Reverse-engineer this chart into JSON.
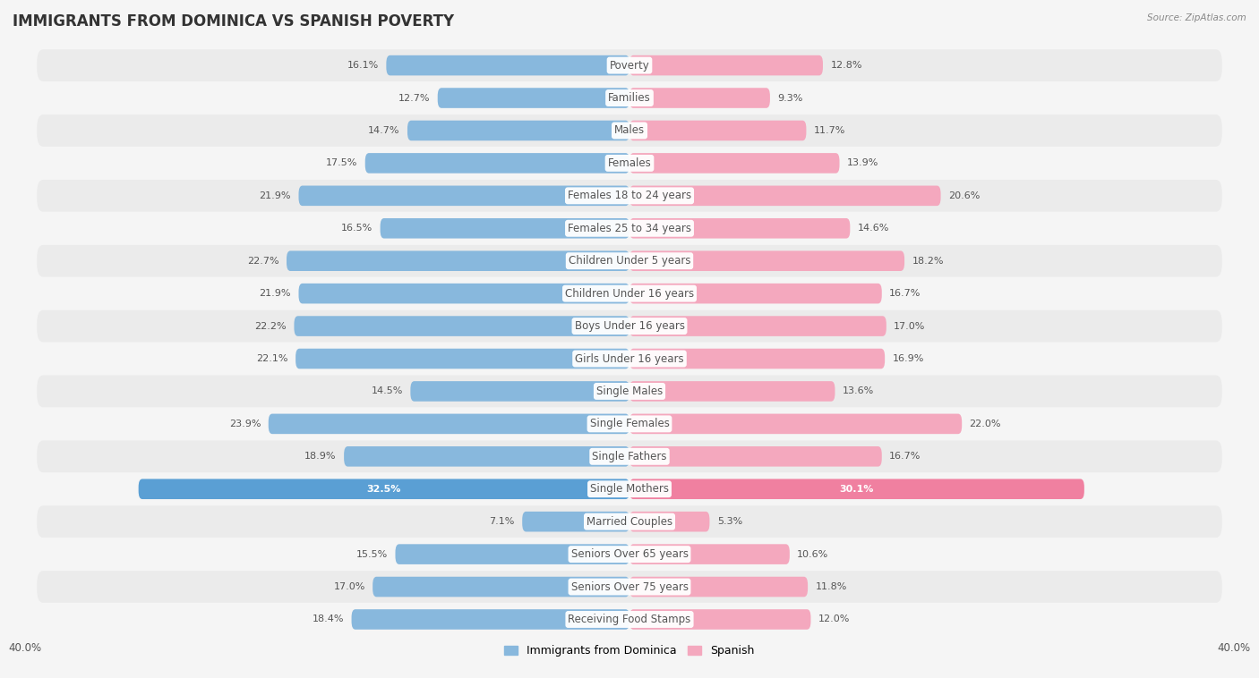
{
  "title": "IMMIGRANTS FROM DOMINICA VS SPANISH POVERTY",
  "source": "Source: ZipAtlas.com",
  "categories": [
    "Poverty",
    "Families",
    "Males",
    "Females",
    "Females 18 to 24 years",
    "Females 25 to 34 years",
    "Children Under 5 years",
    "Children Under 16 years",
    "Boys Under 16 years",
    "Girls Under 16 years",
    "Single Males",
    "Single Females",
    "Single Fathers",
    "Single Mothers",
    "Married Couples",
    "Seniors Over 65 years",
    "Seniors Over 75 years",
    "Receiving Food Stamps"
  ],
  "dominica_values": [
    16.1,
    12.7,
    14.7,
    17.5,
    21.9,
    16.5,
    22.7,
    21.9,
    22.2,
    22.1,
    14.5,
    23.9,
    18.9,
    32.5,
    7.1,
    15.5,
    17.0,
    18.4
  ],
  "spanish_values": [
    12.8,
    9.3,
    11.7,
    13.9,
    20.6,
    14.6,
    18.2,
    16.7,
    17.0,
    16.9,
    13.6,
    22.0,
    16.7,
    30.1,
    5.3,
    10.6,
    11.8,
    12.0
  ],
  "dominica_color": "#88b8dd",
  "spanish_color": "#f4a8be",
  "dominica_highlight_color": "#5a9fd4",
  "spanish_highlight_color": "#f080a0",
  "background_color": "#f5f5f5",
  "row_odd_color": "#ebebeb",
  "row_even_color": "#f5f5f5",
  "bar_height": 0.62,
  "xlim": 40.0,
  "legend_labels": [
    "Immigrants from Dominica",
    "Spanish"
  ],
  "title_fontsize": 12,
  "label_fontsize": 8.5,
  "value_fontsize": 8.0
}
